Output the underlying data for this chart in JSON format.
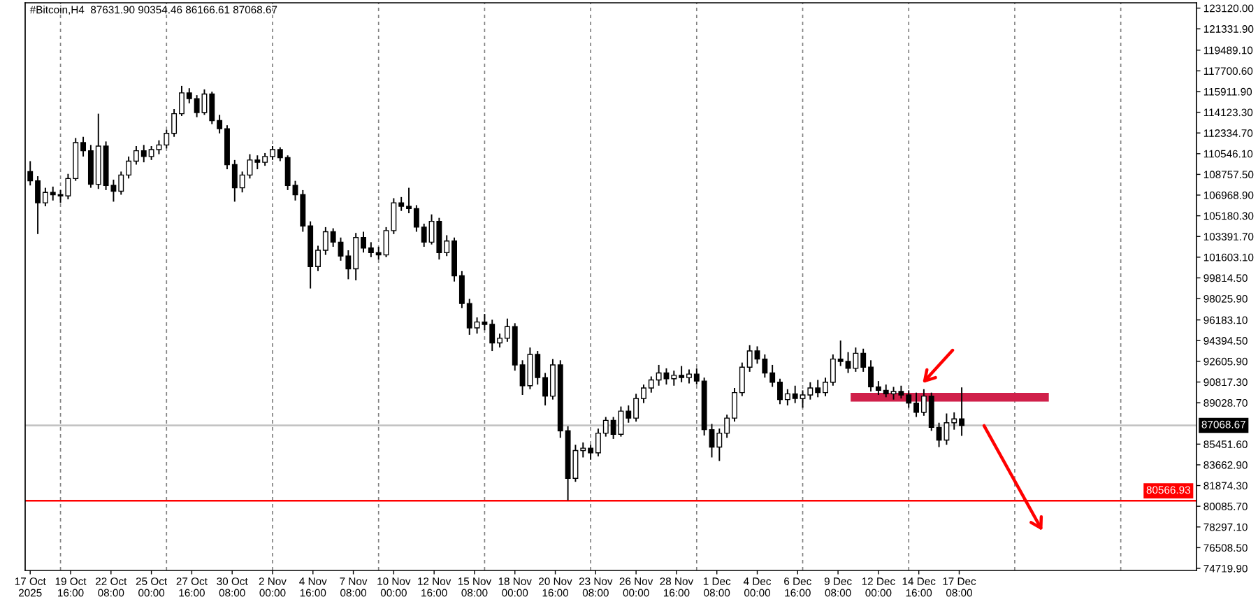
{
  "chart_data": {
    "type": "candlestick",
    "title": "#Bitcoin,H4  87631.90 90354.46 86166.61 87068.67",
    "color": "#000000",
    "x": [
      "2025-10-17T00:00",
      "2025-10-17T12:00",
      "2025-10-18T00:00",
      "2025-10-18T12:00",
      "2025-10-19T00:00",
      "2025-10-19T12:00",
      "2025-10-20T00:00",
      "2025-10-20T12:00",
      "2025-10-21T00:00",
      "2025-10-21T12:00",
      "2025-10-22T00:00",
      "2025-10-22T12:00",
      "2025-10-23T00:00",
      "2025-10-23T12:00",
      "2025-10-24T00:00",
      "2025-10-24T12:00",
      "2025-10-25T00:00",
      "2025-10-25T12:00",
      "2025-10-26T00:00",
      "2025-10-26T12:00",
      "2025-10-27T00:00",
      "2025-10-27T12:00",
      "2025-10-28T00:00",
      "2025-10-28T12:00",
      "2025-10-29T00:00",
      "2025-10-29T12:00",
      "2025-10-30T00:00",
      "2025-10-30T12:00",
      "2025-10-31T00:00",
      "2025-10-31T12:00",
      "2025-11-01T00:00",
      "2025-11-01T12:00",
      "2025-11-02T00:00",
      "2025-11-02T12:00",
      "2025-11-03T00:00",
      "2025-11-03T12:00",
      "2025-11-04T00:00",
      "2025-11-04T12:00",
      "2025-11-05T00:00",
      "2025-11-05T12:00",
      "2025-11-06T00:00",
      "2025-11-06T12:00",
      "2025-11-07T00:00",
      "2025-11-07T12:00",
      "2025-11-08T00:00",
      "2025-11-08T12:00",
      "2025-11-09T00:00",
      "2025-11-09T12:00",
      "2025-11-10T00:00",
      "2025-11-10T12:00",
      "2025-11-11T00:00",
      "2025-11-11T12:00",
      "2025-11-12T00:00",
      "2025-11-12T12:00",
      "2025-11-13T00:00",
      "2025-11-13T12:00",
      "2025-11-14T00:00",
      "2025-11-14T12:00",
      "2025-11-15T00:00",
      "2025-11-15T12:00",
      "2025-11-16T00:00",
      "2025-11-16T12:00",
      "2025-11-17T00:00",
      "2025-11-17T12:00",
      "2025-11-18T00:00",
      "2025-11-18T12:00",
      "2025-11-19T00:00",
      "2025-11-19T12:00",
      "2025-11-20T00:00",
      "2025-11-20T12:00",
      "2025-11-21T00:00",
      "2025-11-21T12:00",
      "2025-11-22T00:00",
      "2025-11-22T12:00",
      "2025-11-23T00:00",
      "2025-11-23T12:00",
      "2025-11-24T00:00",
      "2025-11-24T12:00",
      "2025-11-25T00:00",
      "2025-11-25T12:00",
      "2025-11-26T00:00",
      "2025-11-26T12:00",
      "2025-11-27T00:00",
      "2025-11-27T12:00",
      "2025-11-28T00:00",
      "2025-11-28T12:00",
      "2025-11-29T00:00",
      "2025-11-29T12:00",
      "2025-11-30T00:00",
      "2025-11-30T12:00",
      "2025-12-01T00:00",
      "2025-12-01T12:00",
      "2025-12-02T00:00",
      "2025-12-02T12:00",
      "2025-12-03T00:00",
      "2025-12-03T12:00",
      "2025-12-04T00:00",
      "2025-12-04T12:00",
      "2025-12-05T00:00",
      "2025-12-05T12:00",
      "2025-12-06T00:00",
      "2025-12-06T12:00",
      "2025-12-07T00:00",
      "2025-12-07T12:00",
      "2025-12-08T00:00",
      "2025-12-08T12:00",
      "2025-12-09T00:00",
      "2025-12-09T12:00",
      "2025-12-10T00:00",
      "2025-12-10T12:00",
      "2025-12-11T00:00",
      "2025-12-11T12:00",
      "2025-12-12T00:00",
      "2025-12-12T12:00",
      "2025-12-13T00:00",
      "2025-12-13T12:00",
      "2025-12-14T00:00",
      "2025-12-14T12:00",
      "2025-12-15T00:00",
      "2025-12-15T12:00",
      "2025-12-16T00:00",
      "2025-12-16T12:00",
      "2025-12-17T00:00",
      "2025-12-17T12:00"
    ],
    "ohlc": [
      [
        109000,
        109900,
        107800,
        108200
      ],
      [
        108200,
        108600,
        103600,
        106300
      ],
      [
        106300,
        107600,
        106000,
        107200
      ],
      [
        107200,
        107700,
        106500,
        107000
      ],
      [
        107000,
        107400,
        106300,
        106900
      ],
      [
        106900,
        108800,
        106600,
        108400
      ],
      [
        108400,
        111900,
        108200,
        111500
      ],
      [
        111500,
        112000,
        110300,
        110800
      ],
      [
        110800,
        111300,
        107600,
        107900
      ],
      [
        107900,
        114000,
        107500,
        111200
      ],
      [
        111200,
        111600,
        107400,
        107800
      ],
      [
        107800,
        108300,
        106400,
        107300
      ],
      [
        107300,
        109000,
        107000,
        108700
      ],
      [
        108700,
        110300,
        108400,
        109900
      ],
      [
        109900,
        111200,
        109600,
        110800
      ],
      [
        110800,
        111300,
        109800,
        110300
      ],
      [
        110300,
        111200,
        110000,
        110900
      ],
      [
        110900,
        111700,
        110500,
        111300
      ],
      [
        111300,
        112600,
        111000,
        112300
      ],
      [
        112300,
        114400,
        112000,
        114000
      ],
      [
        114000,
        116400,
        113800,
        115800
      ],
      [
        115800,
        116200,
        114900,
        115300
      ],
      [
        115300,
        115600,
        113700,
        114100
      ],
      [
        114100,
        116100,
        113900,
        115700
      ],
      [
        115700,
        115900,
        113100,
        113400
      ],
      [
        113400,
        113900,
        112300,
        112700
      ],
      [
        112700,
        113000,
        109200,
        109600
      ],
      [
        109600,
        110000,
        106400,
        107600
      ],
      [
        107600,
        109000,
        107200,
        108700
      ],
      [
        108700,
        110500,
        108400,
        110000
      ],
      [
        110000,
        110400,
        109200,
        109800
      ],
      [
        109800,
        110600,
        109500,
        110300
      ],
      [
        110300,
        111200,
        110000,
        110900
      ],
      [
        110900,
        111100,
        109900,
        110200
      ],
      [
        110200,
        110400,
        107400,
        107800
      ],
      [
        107800,
        108200,
        106500,
        107000
      ],
      [
        107000,
        107400,
        103800,
        104300
      ],
      [
        104300,
        104700,
        98900,
        100800
      ],
      [
        100800,
        102600,
        100400,
        102200
      ],
      [
        102200,
        104200,
        101800,
        103800
      ],
      [
        103800,
        104100,
        102500,
        102900
      ],
      [
        102900,
        103300,
        101300,
        101700
      ],
      [
        101700,
        102200,
        99700,
        100600
      ],
      [
        100600,
        103700,
        99600,
        103300
      ],
      [
        103300,
        103800,
        102000,
        102400
      ],
      [
        102400,
        102900,
        101600,
        102000
      ],
      [
        102000,
        102500,
        101400,
        101800
      ],
      [
        101800,
        104200,
        101600,
        103900
      ],
      [
        103900,
        106700,
        103600,
        106300
      ],
      [
        106300,
        106800,
        105600,
        106000
      ],
      [
        106000,
        107600,
        105400,
        105800
      ],
      [
        105800,
        106100,
        103800,
        104200
      ],
      [
        104200,
        104500,
        102500,
        102900
      ],
      [
        102900,
        105300,
        102700,
        104700
      ],
      [
        104700,
        105000,
        101400,
        102000
      ],
      [
        102000,
        103500,
        101700,
        103000
      ],
      [
        103000,
        103300,
        99500,
        100000
      ],
      [
        100000,
        100400,
        97200,
        97600
      ],
      [
        97600,
        98000,
        94900,
        95500
      ],
      [
        95500,
        96400,
        95000,
        96000
      ],
      [
        96000,
        96700,
        95300,
        95800
      ],
      [
        95800,
        96200,
        93500,
        94200
      ],
      [
        94200,
        95000,
        93800,
        94600
      ],
      [
        94600,
        96300,
        94300,
        95600
      ],
      [
        95600,
        95900,
        91800,
        92300
      ],
      [
        92300,
        92700,
        89700,
        90500
      ],
      [
        90500,
        93800,
        90200,
        93200
      ],
      [
        93200,
        93500,
        90600,
        91200
      ],
      [
        91200,
        91600,
        88800,
        89600
      ],
      [
        89600,
        92800,
        89300,
        92300
      ],
      [
        92300,
        92700,
        86000,
        86600
      ],
      [
        86600,
        87000,
        80600,
        82500
      ],
      [
        82500,
        85400,
        82200,
        84900
      ],
      [
        84900,
        85600,
        84300,
        85100
      ],
      [
        85100,
        85400,
        84100,
        84700
      ],
      [
        84700,
        86800,
        84400,
        86400
      ],
      [
        86400,
        87800,
        86100,
        87500
      ],
      [
        87500,
        87800,
        85900,
        86300
      ],
      [
        86300,
        88700,
        86100,
        88300
      ],
      [
        88300,
        88800,
        87300,
        87700
      ],
      [
        87700,
        89800,
        87400,
        89400
      ],
      [
        89400,
        90600,
        89000,
        90300
      ],
      [
        90300,
        91300,
        89900,
        91000
      ],
      [
        91000,
        92300,
        90500,
        91600
      ],
      [
        91600,
        92000,
        90600,
        91100
      ],
      [
        91100,
        91800,
        90500,
        91400
      ],
      [
        91400,
        92200,
        90800,
        91200
      ],
      [
        91200,
        91900,
        90700,
        91500
      ],
      [
        91500,
        92000,
        90600,
        90900
      ],
      [
        90900,
        91200,
        86200,
        86700
      ],
      [
        86700,
        87200,
        84300,
        85200
      ],
      [
        85200,
        86800,
        84000,
        86400
      ],
      [
        86400,
        88000,
        86000,
        87700
      ],
      [
        87700,
        90300,
        87400,
        89900
      ],
      [
        89900,
        92500,
        89600,
        92100
      ],
      [
        92100,
        94000,
        91700,
        93500
      ],
      [
        93500,
        93900,
        92400,
        92800
      ],
      [
        92800,
        93200,
        91200,
        91600
      ],
      [
        91600,
        92300,
        90400,
        90800
      ],
      [
        90800,
        91100,
        88900,
        89300
      ],
      [
        89300,
        90200,
        88800,
        89800
      ],
      [
        89800,
        90500,
        89000,
        89400
      ],
      [
        89400,
        90100,
        88600,
        89700
      ],
      [
        89700,
        90800,
        89300,
        90300
      ],
      [
        90300,
        91000,
        89500,
        89900
      ],
      [
        89900,
        91200,
        89600,
        90800
      ],
      [
        90800,
        93200,
        90500,
        92800
      ],
      [
        92800,
        94400,
        92200,
        92600
      ],
      [
        92600,
        93400,
        91600,
        92000
      ],
      [
        92000,
        93800,
        91700,
        93300
      ],
      [
        93300,
        93700,
        91700,
        92100
      ],
      [
        92100,
        92700,
        90000,
        90400
      ],
      [
        90400,
        90900,
        89700,
        90100
      ],
      [
        90100,
        90600,
        89500,
        89800
      ],
      [
        89800,
        90400,
        89300,
        90000
      ],
      [
        90000,
        90500,
        89400,
        89700
      ],
      [
        89700,
        90100,
        88600,
        89000
      ],
      [
        89000,
        89900,
        87800,
        88200
      ],
      [
        88200,
        90200,
        87900,
        89600
      ],
      [
        89600,
        89900,
        86600,
        86900
      ],
      [
        86900,
        87300,
        85200,
        85800
      ],
      [
        85800,
        88100,
        85400,
        87300
      ],
      [
        87300,
        88200,
        86700,
        87631.9
      ],
      [
        87631.9,
        90354.46,
        86166.61,
        87068.67
      ]
    ],
    "series": [
      {
        "type": "line",
        "color": "#d0204a",
        "x": [
          "2025-12-10T04:00",
          "2025-12-23T06:00"
        ],
        "values": [
          89500,
          89500
        ]
      }
    ],
    "xlim": [
      "2025-10-16T16:00",
      "2026-01-02T00:00"
    ],
    "xticks": [
      {
        "value": "2025-10-17T00:00",
        "label": "17 Oct 2025"
      },
      {
        "value": "2025-10-19T16:00",
        "label": "19 Oct 16:00"
      },
      {
        "value": "2025-10-22T08:00",
        "label": "22 Oct 08:00"
      },
      {
        "value": "2025-10-25T00:00",
        "label": "25 Oct 00:00"
      },
      {
        "value": "2025-10-27T16:00",
        "label": "27 Oct 16:00"
      },
      {
        "value": "2025-10-30T08:00",
        "label": "30 Oct 08:00"
      },
      {
        "value": "2025-11-02T00:00",
        "label": "2 Nov 00:00"
      },
      {
        "value": "2025-11-04T16:00",
        "label": "4 Nov 16:00"
      },
      {
        "value": "2025-11-07T08:00",
        "label": "7 Nov 08:00"
      },
      {
        "value": "2025-11-10T00:00",
        "label": "10 Nov 00:00"
      },
      {
        "value": "2025-11-12T16:00",
        "label": "12 Nov 16:00"
      },
      {
        "value": "2025-11-15T08:00",
        "label": "15 Nov 08:00"
      },
      {
        "value": "2025-11-18T00:00",
        "label": "18 Nov 00:00"
      },
      {
        "value": "2025-11-20T16:00",
        "label": "20 Nov 16:00"
      },
      {
        "value": "2025-11-23T08:00",
        "label": "23 Nov 08:00"
      },
      {
        "value": "2025-11-26T00:00",
        "label": "26 Nov 00:00"
      },
      {
        "value": "2025-11-28T16:00",
        "label": "28 Nov 16:00"
      },
      {
        "value": "2025-12-01T08:00",
        "label": "1 Dec 08:00"
      },
      {
        "value": "2025-12-04T00:00",
        "label": "4 Dec 00:00"
      },
      {
        "value": "2025-12-06T16:00",
        "label": "6 Dec 16:00"
      },
      {
        "value": "2025-12-09T08:00",
        "label": "9 Dec 08:00"
      },
      {
        "value": "2025-12-12T00:00",
        "label": "12 Dec 00:00"
      },
      {
        "value": "2025-12-14T16:00",
        "label": "14 Dec 16:00"
      },
      {
        "value": "2025-12-17T08:00",
        "label": "17 Dec 08:00"
      }
    ],
    "ylim": [
      74540,
      123580
    ],
    "yticks": [
      {
        "value": 123120,
        "label": "123120.00"
      },
      {
        "value": 121331.9,
        "label": "121331.90"
      },
      {
        "value": 119489.1,
        "label": "119489.10"
      },
      {
        "value": 117700.6,
        "label": "117700.60"
      },
      {
        "value": 115911.9,
        "label": "115911.90"
      },
      {
        "value": 114123.3,
        "label": "114123.30"
      },
      {
        "value": 112334.7,
        "label": "112334.70"
      },
      {
        "value": 110546.1,
        "label": "110546.10"
      },
      {
        "value": 108757.5,
        "label": "108757.50"
      },
      {
        "value": 106968.9,
        "label": "106968.90"
      },
      {
        "value": 105180.3,
        "label": "105180.30"
      },
      {
        "value": 103391.7,
        "label": "103391.70"
      },
      {
        "value": 101603.1,
        "label": "101603.10"
      },
      {
        "value": 99814.5,
        "label": "99814.50"
      },
      {
        "value": 98025.9,
        "label": "98025.90"
      },
      {
        "value": 96183.1,
        "label": "96183.10"
      },
      {
        "value": 94394.5,
        "label": "94394.50"
      },
      {
        "value": 92605.9,
        "label": "92605.90"
      },
      {
        "value": 90817.3,
        "label": "90817.30"
      },
      {
        "value": 89028.7,
        "label": "89028.70"
      },
      {
        "value": 85451.6,
        "label": "85451.60"
      },
      {
        "value": 83662.9,
        "label": "83662.90"
      },
      {
        "value": 81874.3,
        "label": "81874.30"
      },
      {
        "value": 80085.7,
        "label": "80085.70"
      },
      {
        "value": 78297.1,
        "label": "78297.10"
      },
      {
        "value": 76508.5,
        "label": "76508.50"
      },
      {
        "value": 74719.9,
        "label": "74719.90"
      }
    ],
    "ref_lines": [
      {
        "axis": "x",
        "value": "2025-10-19T00:00",
        "color": "#808080",
        "line_style": "dashed"
      },
      {
        "axis": "x",
        "value": "2025-10-26T00:00",
        "color": "#808080",
        "line_style": "dashed"
      },
      {
        "axis": "x",
        "value": "2025-11-02T00:00",
        "color": "#808080",
        "line_style": "dashed"
      },
      {
        "axis": "x",
        "value": "2025-11-09T00:00",
        "color": "#808080",
        "line_style": "dashed"
      },
      {
        "axis": "x",
        "value": "2025-11-16T00:00",
        "color": "#808080",
        "line_style": "dashed"
      },
      {
        "axis": "x",
        "value": "2025-11-23T00:00",
        "color": "#808080",
        "line_style": "dashed"
      },
      {
        "axis": "x",
        "value": "2025-11-30T00:00",
        "color": "#808080",
        "line_style": "dashed"
      },
      {
        "axis": "x",
        "value": "2025-12-07T00:00",
        "color": "#808080",
        "line_style": "dashed"
      },
      {
        "axis": "x",
        "value": "2025-12-14T00:00",
        "color": "#808080",
        "line_style": "dashed"
      },
      {
        "axis": "x",
        "value": "2025-12-21T00:00",
        "color": "#808080",
        "line_style": "dashed"
      },
      {
        "axis": "x",
        "value": "2025-12-28T00:00",
        "color": "#808080",
        "line_style": "dashed"
      },
      {
        "axis": "y",
        "value": 87068.67,
        "label": "87068.67",
        "color": "#c0c0c0"
      },
      {
        "axis": "y",
        "value": 80566.93,
        "label": "80566.93",
        "color": "#ff0000"
      }
    ]
  }
}
